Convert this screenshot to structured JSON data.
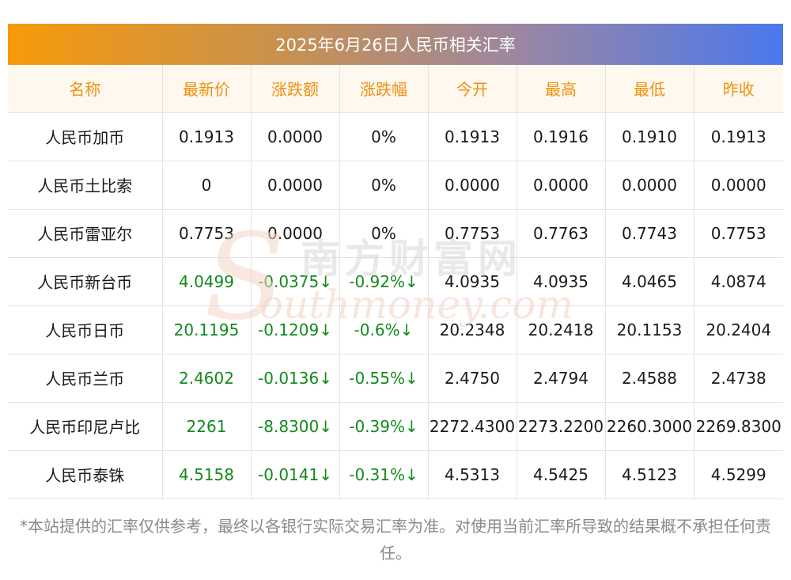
{
  "title": "2025年6月26日人民币相关汇率",
  "columns": [
    "名称",
    "最新价",
    "涨跌额",
    "涨跌幅",
    "今开",
    "最高",
    "最低",
    "昨收"
  ],
  "rows": [
    {
      "name": "人民币加币",
      "latest": "0.1913",
      "change": "0.0000",
      "change_pct": "0%",
      "open": "0.1913",
      "high": "0.1916",
      "low": "0.1910",
      "prev_close": "0.1913",
      "trend": "flat"
    },
    {
      "name": "人民币土比索",
      "latest": "0",
      "change": "0.0000",
      "change_pct": "0%",
      "open": "0.0000",
      "high": "0.0000",
      "low": "0.0000",
      "prev_close": "0.0000",
      "trend": "flat"
    },
    {
      "name": "人民币雷亚尔",
      "latest": "0.7753",
      "change": "0.0000",
      "change_pct": "0%",
      "open": "0.7753",
      "high": "0.7763",
      "low": "0.7743",
      "prev_close": "0.7753",
      "trend": "flat"
    },
    {
      "name": "人民币新台币",
      "latest": "4.0499",
      "change": "-0.0375↓",
      "change_pct": "-0.92%↓",
      "open": "4.0935",
      "high": "4.0935",
      "low": "4.0465",
      "prev_close": "4.0874",
      "trend": "down"
    },
    {
      "name": "人民币日币",
      "latest": "20.1195",
      "change": "-0.1209↓",
      "change_pct": "-0.6%↓",
      "open": "20.2348",
      "high": "20.2418",
      "low": "20.1153",
      "prev_close": "20.2404",
      "trend": "down"
    },
    {
      "name": "人民币兰币",
      "latest": "2.4602",
      "change": "-0.0136↓",
      "change_pct": "-0.55%↓",
      "open": "2.4750",
      "high": "2.4794",
      "low": "2.4588",
      "prev_close": "2.4738",
      "trend": "down"
    },
    {
      "name": "人民币印尼卢比",
      "latest": "2261",
      "change": "-8.8300↓",
      "change_pct": "-0.39%↓",
      "open": "2272.4300",
      "high": "2273.2200",
      "low": "2260.3000",
      "prev_close": "2269.8300",
      "trend": "down"
    },
    {
      "name": "人民币泰铢",
      "latest": "4.5158",
      "change": "-0.0141↓",
      "change_pct": "-0.31%↓",
      "open": "4.5313",
      "high": "4.5425",
      "low": "4.5123",
      "prev_close": "4.5299",
      "trend": "down"
    }
  ],
  "watermark": {
    "cn": "南方财富网",
    "en": "outhmoney.com",
    "initial": "S"
  },
  "footnote": "*本站提供的汇率仅供参考，最终以各银行实际交易汇率为准。对使用当前汇率所导致的结果概不承担任何责任。",
  "colors": {
    "header_text": "#f0900e",
    "header_bg": "#fff8ef",
    "down": "#13891d",
    "neutral": "#1a1a1a",
    "watermark": "#f3d6c8"
  }
}
